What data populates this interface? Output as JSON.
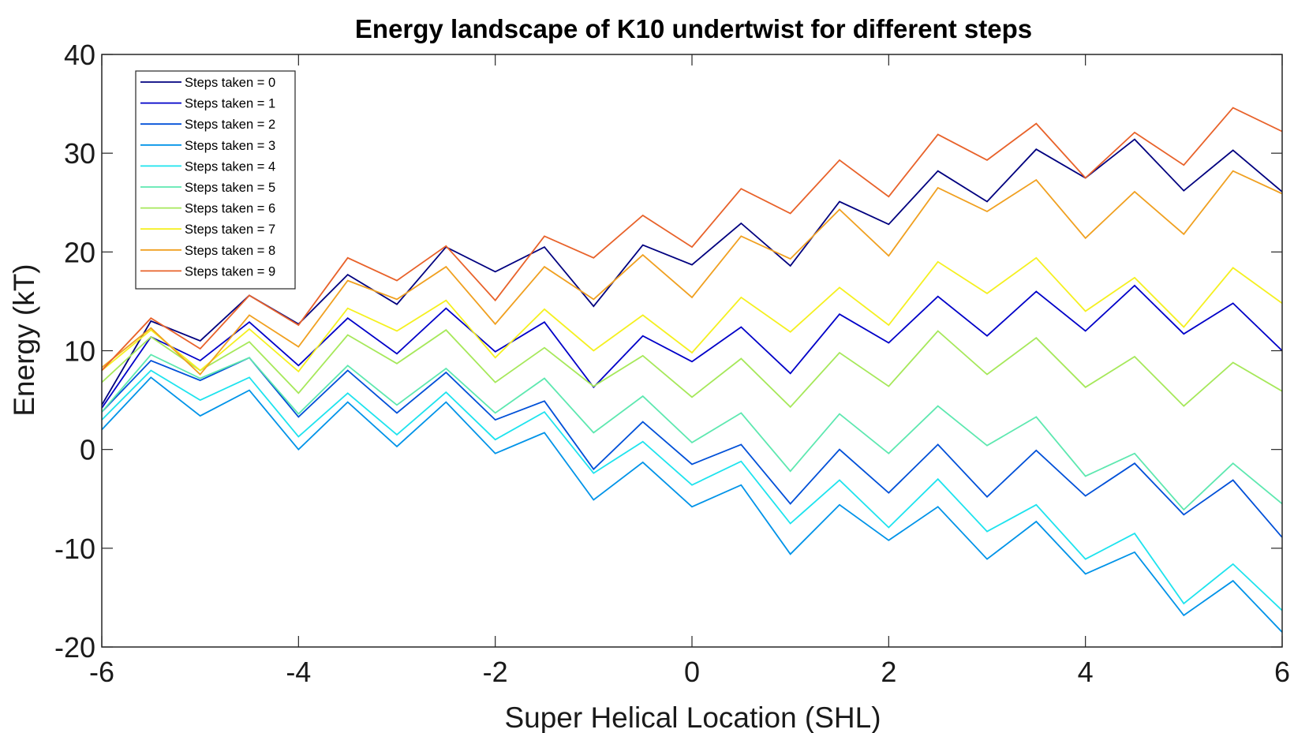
{
  "chart_data": {
    "type": "line",
    "title": "Energy landscape of K10 undertwist for different steps",
    "xlabel": "Super Helical Location (SHL)",
    "ylabel": "Energy (kT)",
    "xlim": [
      -6,
      6
    ],
    "ylim": [
      -20,
      40
    ],
    "xticks": [
      -6,
      -4,
      -2,
      0,
      2,
      4,
      6
    ],
    "yticks": [
      -20,
      -10,
      0,
      10,
      20,
      30,
      40
    ],
    "grid": false,
    "legend_position": "top-left",
    "x": [
      -6,
      -5.5,
      -5,
      -4.5,
      -4,
      -3.5,
      -3,
      -2.5,
      -2,
      -1.5,
      -1,
      -0.5,
      0,
      0.5,
      1,
      1.5,
      2,
      2.5,
      3,
      3.5,
      4,
      4.5,
      5,
      5.5,
      6
    ],
    "series": [
      {
        "name": "Steps taken = 0",
        "color": "#00007f",
        "values": [
          4.5,
          13.0,
          11.0,
          15.6,
          12.7,
          17.7,
          14.7,
          20.5,
          18.0,
          20.5,
          14.5,
          20.7,
          18.7,
          22.9,
          18.6,
          25.1,
          22.8,
          28.2,
          25.1,
          30.4,
          27.5,
          31.4,
          26.2,
          30.3,
          26.1
        ]
      },
      {
        "name": "Steps taken = 1",
        "color": "#0000c8",
        "values": [
          4.2,
          11.4,
          9.0,
          12.9,
          8.5,
          13.3,
          9.7,
          14.3,
          9.9,
          12.9,
          6.3,
          11.5,
          8.9,
          12.4,
          7.7,
          13.7,
          10.8,
          15.5,
          11.5,
          16.0,
          12.0,
          16.6,
          11.7,
          14.8,
          10.0
        ]
      },
      {
        "name": "Steps taken = 2",
        "color": "#0050d8",
        "values": [
          3.8,
          9.0,
          7.0,
          9.3,
          3.3,
          8.0,
          3.7,
          7.8,
          3.0,
          4.9,
          -2.0,
          2.8,
          -1.5,
          0.5,
          -5.5,
          0.0,
          -4.4,
          0.5,
          -4.8,
          -0.1,
          -4.7,
          -1.4,
          -6.6,
          -3.1,
          -8.9
        ]
      },
      {
        "name": "Steps taken = 3",
        "color": "#0093e8",
        "values": [
          2.0,
          7.3,
          3.4,
          6.0,
          0.0,
          4.8,
          0.3,
          4.8,
          -0.4,
          1.7,
          -5.1,
          -1.3,
          -5.8,
          -3.6,
          -10.6,
          -5.6,
          -9.2,
          -5.8,
          -11.1,
          -7.3,
          -12.6,
          -10.4,
          -16.8,
          -13.3,
          -18.5
        ]
      },
      {
        "name": "Steps taken = 4",
        "color": "#1ee3ee",
        "values": [
          3.0,
          8.0,
          5.0,
          7.3,
          1.3,
          5.7,
          1.5,
          5.8,
          1.0,
          3.8,
          -2.4,
          0.8,
          -3.6,
          -1.2,
          -7.5,
          -3.1,
          -7.9,
          -3.0,
          -8.3,
          -5.6,
          -11.1,
          -8.5,
          -15.6,
          -11.6,
          -16.3
        ]
      },
      {
        "name": "Steps taken = 5",
        "color": "#5ee8b0",
        "values": [
          3.8,
          9.6,
          7.2,
          9.3,
          3.6,
          8.5,
          4.5,
          8.2,
          3.7,
          7.2,
          1.7,
          5.4,
          0.7,
          3.7,
          -2.2,
          3.6,
          -0.4,
          4.4,
          0.4,
          3.3,
          -2.7,
          -0.4,
          -6.1,
          -1.4,
          -5.5
        ]
      },
      {
        "name": "Steps taken = 6",
        "color": "#a6e85a",
        "values": [
          6.8,
          11.4,
          8.0,
          10.9,
          5.7,
          11.6,
          8.7,
          12.1,
          6.8,
          10.3,
          6.4,
          9.5,
          5.3,
          9.2,
          4.3,
          9.8,
          6.4,
          12.0,
          7.6,
          11.3,
          6.3,
          9.4,
          4.4,
          8.8,
          5.9
        ]
      },
      {
        "name": "Steps taken = 7",
        "color": "#f5f020",
        "values": [
          8.0,
          12.1,
          8.0,
          12.2,
          7.9,
          14.3,
          12.0,
          15.1,
          9.3,
          14.2,
          10.0,
          13.6,
          9.8,
          15.4,
          11.9,
          16.4,
          12.6,
          19.0,
          15.8,
          19.4,
          14.0,
          17.4,
          12.4,
          18.4,
          14.8
        ]
      },
      {
        "name": "Steps taken = 8",
        "color": "#f0a020",
        "values": [
          8.3,
          12.3,
          7.6,
          13.6,
          10.4,
          17.1,
          15.2,
          18.5,
          12.7,
          18.5,
          15.2,
          19.7,
          15.4,
          21.6,
          19.3,
          24.3,
          19.6,
          26.5,
          24.1,
          27.3,
          21.4,
          26.1,
          21.8,
          28.2,
          25.9
        ]
      },
      {
        "name": "Steps taken = 9",
        "color": "#e8622a",
        "values": [
          8.0,
          13.3,
          10.2,
          15.6,
          12.6,
          19.4,
          17.1,
          20.6,
          15.1,
          21.6,
          19.4,
          23.7,
          20.5,
          26.4,
          23.9,
          29.3,
          25.6,
          31.9,
          29.3,
          33.0,
          27.5,
          32.1,
          28.8,
          34.6,
          32.2
        ]
      }
    ]
  }
}
